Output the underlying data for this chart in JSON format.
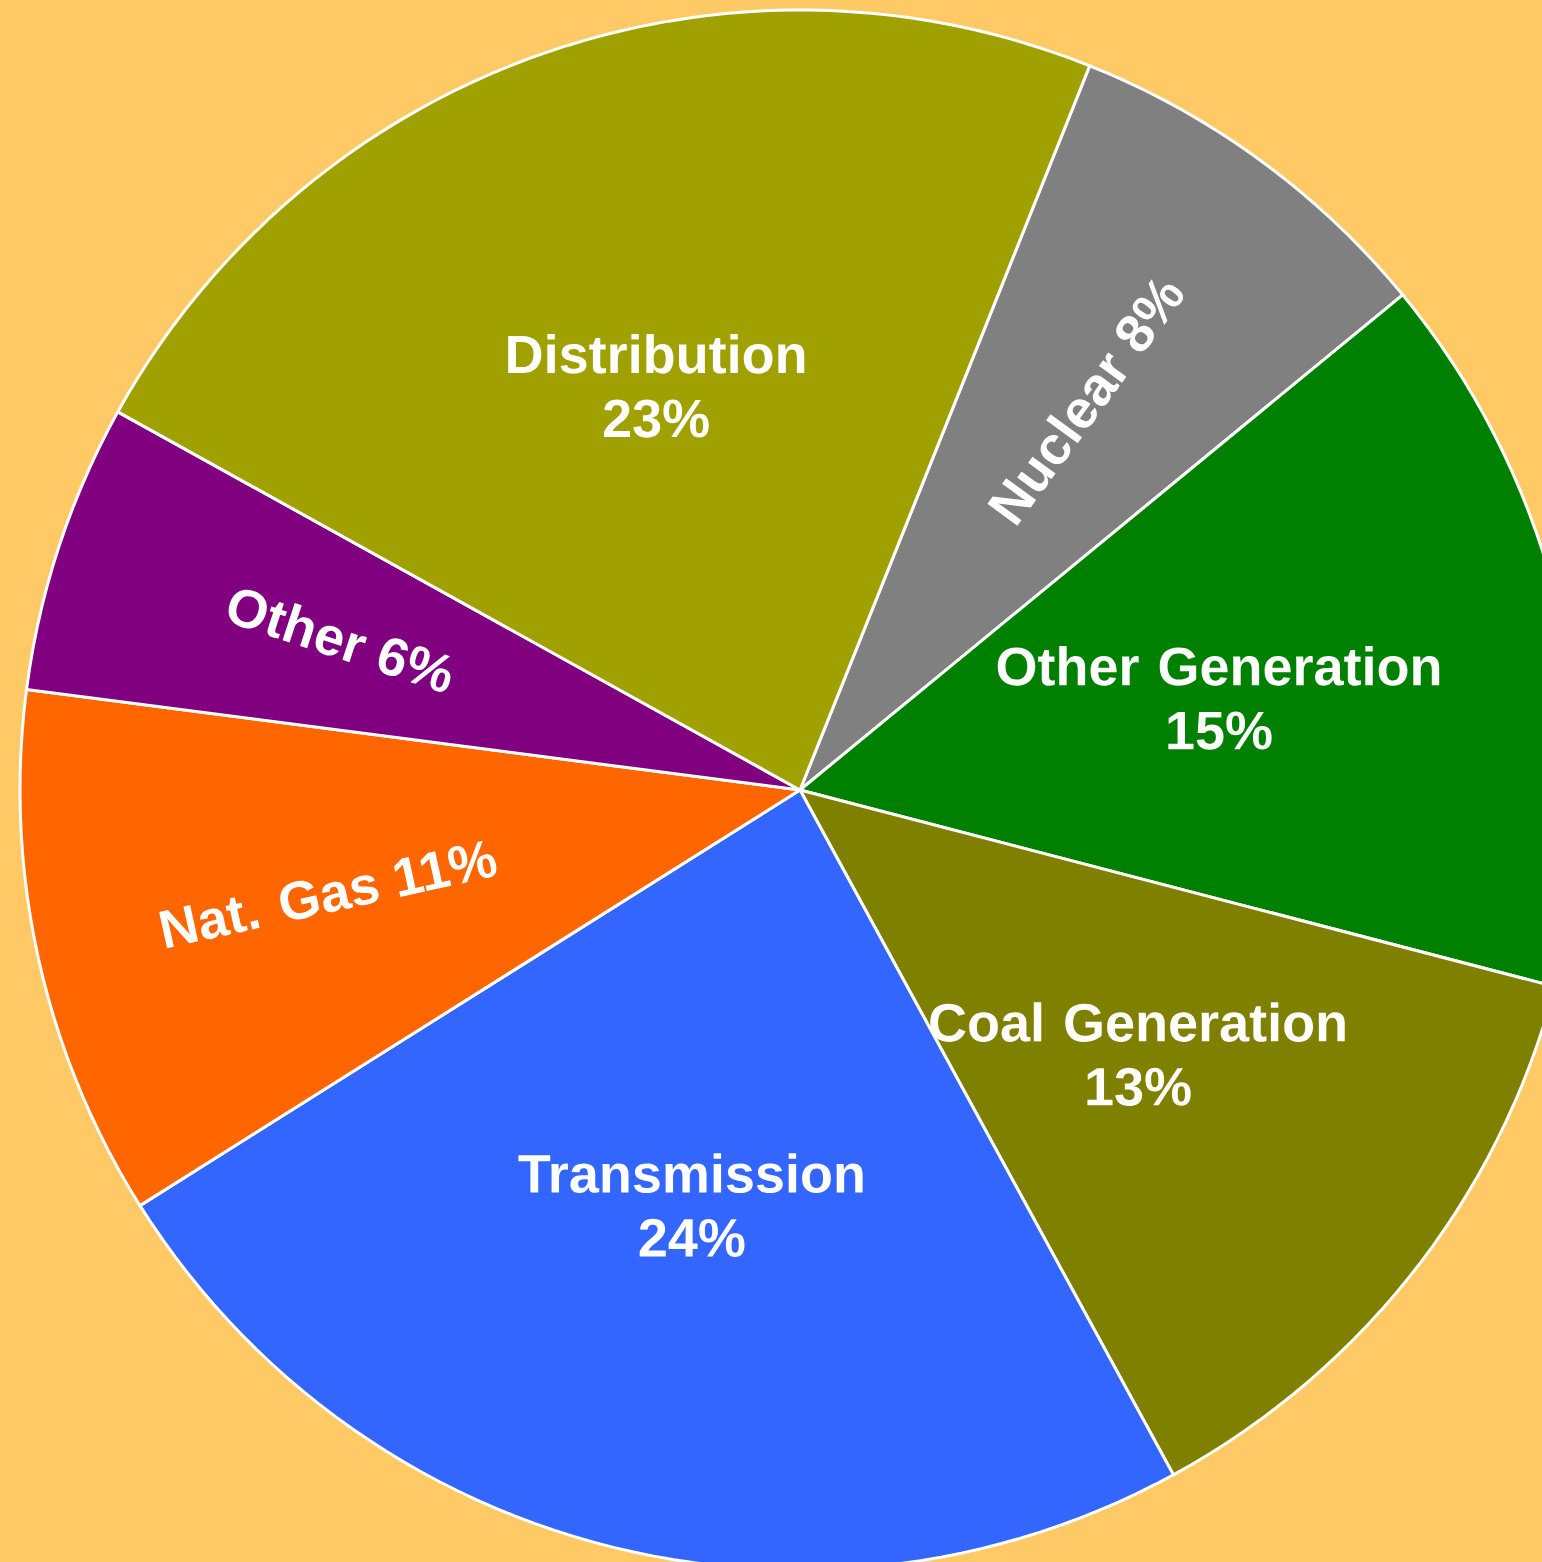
{
  "chart_data": {
    "type": "pie",
    "categories": [
      "Nuclear",
      "Other Generation",
      "Coal Generation",
      "Transmission",
      "Nat. Gas",
      "Other",
      "Distribution"
    ],
    "values": [
      8,
      15,
      13,
      24,
      11,
      6,
      23
    ],
    "colors": [
      "#808080",
      "#008000",
      "#808000",
      "#3366ff",
      "#ff6600",
      "#800080",
      "#a0a000"
    ],
    "value_labels": [
      "8%",
      "15%",
      "13%",
      "24%",
      "11%",
      "6%",
      "23%"
    ]
  }
}
